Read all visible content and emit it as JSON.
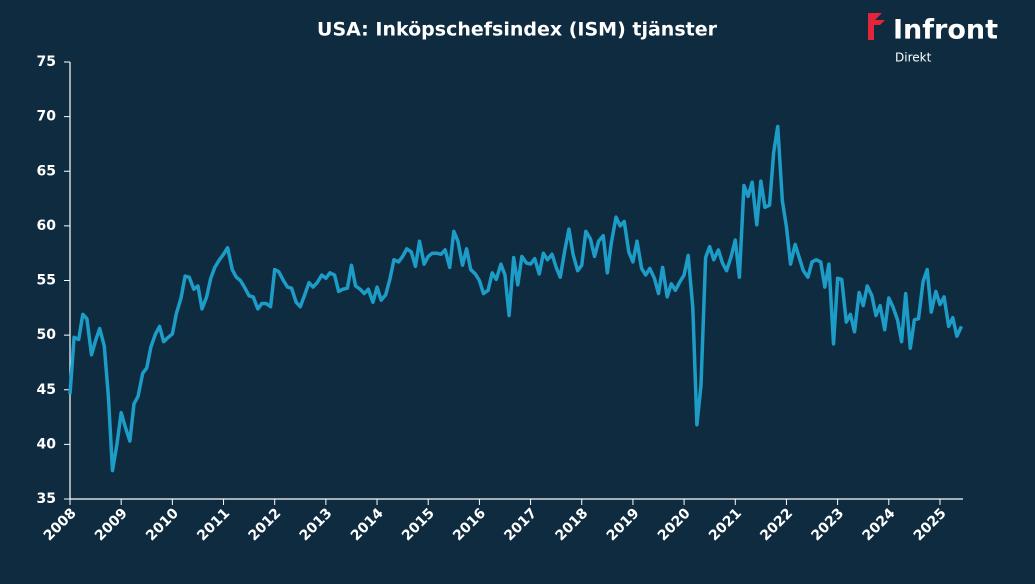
{
  "brand": {
    "name": "Infront",
    "sub": "Direkt"
  },
  "chart_data": {
    "type": "line",
    "title": "USA: Inköpschefsindex (ISM) tjänster",
    "xlim": [
      2008,
      2025.45
    ],
    "xticks": [
      2008,
      2009,
      2010,
      2011,
      2012,
      2013,
      2014,
      2015,
      2016,
      2017,
      2018,
      2019,
      2020,
      2021,
      2022,
      2023,
      2024,
      2025
    ],
    "ylim": [
      35,
      75
    ],
    "yticks": [
      35,
      40,
      45,
      50,
      55,
      60,
      65,
      70,
      75
    ],
    "grid": false,
    "x": [
      2008,
      2008.08,
      2008.17,
      2008.25,
      2008.33,
      2008.42,
      2008.5,
      2008.58,
      2008.67,
      2008.75,
      2008.83,
      2008.92,
      2009,
      2009.08,
      2009.17,
      2009.25,
      2009.33,
      2009.42,
      2009.5,
      2009.58,
      2009.67,
      2009.75,
      2009.83,
      2009.92,
      2010,
      2010.08,
      2010.17,
      2010.25,
      2010.33,
      2010.42,
      2010.5,
      2010.58,
      2010.67,
      2010.75,
      2010.83,
      2010.92,
      2011,
      2011.08,
      2011.17,
      2011.25,
      2011.33,
      2011.42,
      2011.5,
      2011.58,
      2011.67,
      2011.75,
      2011.83,
      2011.92,
      2012,
      2012.08,
      2012.17,
      2012.25,
      2012.33,
      2012.42,
      2012.5,
      2012.58,
      2012.67,
      2012.75,
      2012.83,
      2012.92,
      2013,
      2013.08,
      2013.17,
      2013.25,
      2013.33,
      2013.42,
      2013.5,
      2013.58,
      2013.67,
      2013.75,
      2013.83,
      2013.92,
      2014,
      2014.08,
      2014.17,
      2014.25,
      2014.33,
      2014.42,
      2014.5,
      2014.58,
      2014.67,
      2014.75,
      2014.83,
      2014.92,
      2015,
      2015.08,
      2015.17,
      2015.25,
      2015.33,
      2015.42,
      2015.5,
      2015.58,
      2015.67,
      2015.75,
      2015.83,
      2015.92,
      2016,
      2016.08,
      2016.17,
      2016.25,
      2016.33,
      2016.42,
      2016.5,
      2016.58,
      2016.67,
      2016.75,
      2016.83,
      2016.92,
      2017,
      2017.08,
      2017.17,
      2017.25,
      2017.33,
      2017.42,
      2017.5,
      2017.58,
      2017.67,
      2017.75,
      2017.83,
      2017.92,
      2018,
      2018.08,
      2018.17,
      2018.25,
      2018.33,
      2018.42,
      2018.5,
      2018.58,
      2018.67,
      2018.75,
      2018.83,
      2018.92,
      2019,
      2019.08,
      2019.17,
      2019.25,
      2019.33,
      2019.42,
      2019.5,
      2019.58,
      2019.67,
      2019.75,
      2019.83,
      2019.92,
      2020,
      2020.08,
      2020.17,
      2020.25,
      2020.33,
      2020.42,
      2020.5,
      2020.58,
      2020.67,
      2020.75,
      2020.83,
      2020.92,
      2021,
      2021.08,
      2021.17,
      2021.25,
      2021.33,
      2021.42,
      2021.5,
      2021.58,
      2021.67,
      2021.75,
      2021.83,
      2021.92,
      2022,
      2022.08,
      2022.17,
      2022.25,
      2022.33,
      2022.42,
      2022.5,
      2022.58,
      2022.67,
      2022.75,
      2022.83,
      2022.92,
      2023,
      2023.08,
      2023.17,
      2023.25,
      2023.33,
      2023.42,
      2023.5,
      2023.58,
      2023.67,
      2023.75,
      2023.83,
      2023.92,
      2024,
      2024.08,
      2024.17,
      2024.25,
      2024.33,
      2024.42,
      2024.5,
      2024.58,
      2024.67,
      2024.75,
      2024.83,
      2024.92,
      2025,
      2025.08,
      2025.17,
      2025.25,
      2025.33,
      2025.42
    ],
    "series": [
      {
        "color": "#1c9cc6",
        "values": [
          44.6,
          49.8,
          49.6,
          51.9,
          51.5,
          48.2,
          49.5,
          50.6,
          49.0,
          44.4,
          37.6,
          40.1,
          42.9,
          41.6,
          40.3,
          43.7,
          44.4,
          46.5,
          47.0,
          48.9,
          50.1,
          50.8,
          49.4,
          49.8,
          50.1,
          52.0,
          53.4,
          55.4,
          55.3,
          54.2,
          54.5,
          52.4,
          53.5,
          55.2,
          56.2,
          56.9,
          57.4,
          58.0,
          56.0,
          55.3,
          55.0,
          54.3,
          53.6,
          53.5,
          52.4,
          52.9,
          52.9,
          52.6,
          56.0,
          55.8,
          55.0,
          54.4,
          54.3,
          53.0,
          52.6,
          53.6,
          54.8,
          54.4,
          54.8,
          55.5,
          55.2,
          55.7,
          55.5,
          54.0,
          54.2,
          54.3,
          56.4,
          54.5,
          54.2,
          53.8,
          54.2,
          53.0,
          54.4,
          53.2,
          53.7,
          55.1,
          56.9,
          56.7,
          57.2,
          57.9,
          57.6,
          56.3,
          58.6,
          56.5,
          57.2,
          57.5,
          57.5,
          57.4,
          57.8,
          56.2,
          59.5,
          58.6,
          56.4,
          57.9,
          56.0,
          55.6,
          55.0,
          53.8,
          54.1,
          55.7,
          55.1,
          56.5,
          55.5,
          51.8,
          57.1,
          54.6,
          57.2,
          56.6,
          56.5,
          57.0,
          55.6,
          57.5,
          56.9,
          57.4,
          56.2,
          55.3,
          57.8,
          59.7,
          57.4,
          55.9,
          56.4,
          59.5,
          58.8,
          57.2,
          58.6,
          59.1,
          55.7,
          58.5,
          60.8,
          60.0,
          60.4,
          57.6,
          56.7,
          58.6,
          56.1,
          55.5,
          56.1,
          55.2,
          53.8,
          56.2,
          53.5,
          54.7,
          54.1,
          54.9,
          55.5,
          57.3,
          52.5,
          41.8,
          45.4,
          57.1,
          58.1,
          56.9,
          57.8,
          56.6,
          55.9,
          57.2,
          58.7,
          55.3,
          63.7,
          62.7,
          64.0,
          60.1,
          64.1,
          61.7,
          61.9,
          66.7,
          69.1,
          62.3,
          59.9,
          56.5,
          58.3,
          57.1,
          55.9,
          55.3,
          56.7,
          56.9,
          56.7,
          54.4,
          56.5,
          49.2,
          55.2,
          55.1,
          51.2,
          51.9,
          50.3,
          53.9,
          52.7,
          54.5,
          53.6,
          51.8,
          52.7,
          50.5,
          53.4,
          52.6,
          51.4,
          49.4,
          53.8,
          48.8,
          51.4,
          51.5,
          54.9,
          56.0,
          52.1,
          54.0,
          52.8,
          53.5,
          50.8,
          51.6,
          49.9,
          50.8
        ]
      }
    ]
  }
}
